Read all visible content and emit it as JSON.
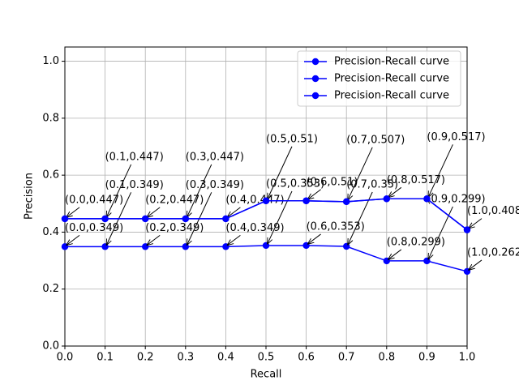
{
  "chart_data": {
    "type": "line",
    "x_label": "Recall",
    "y_label": "Precision",
    "x": [
      0.0,
      0.1,
      0.2,
      0.3,
      0.4,
      0.5,
      0.6,
      0.7,
      0.8,
      0.9,
      1.0
    ],
    "series": [
      {
        "name": "Precision-Recall curve",
        "color": "#0000ff",
        "values": [
          0.447,
          0.447,
          0.447,
          0.447,
          0.447,
          0.51,
          0.51,
          0.507,
          0.517,
          0.517,
          0.408
        ],
        "value_labels": [
          "(0.0,0.447)",
          "(0.1,0.447)",
          "(0.2,0.447)",
          "(0.3,0.447)",
          "(0.4,0.447)",
          "(0.5,0.51)",
          "(0.6,0.51)",
          "(0.7,0.507)",
          "(0.8,0.517)",
          "(0.9,0.517)",
          "(1.0,0.408)"
        ]
      },
      {
        "name": "Precision-Recall curve",
        "color": "#0000ff",
        "values": [
          0.349,
          0.349,
          0.349,
          0.349,
          0.349,
          0.353,
          0.353,
          0.35,
          0.299,
          0.299,
          0.262
        ],
        "value_labels": [
          "(0.0,0.349)",
          "(0.1,0.349)",
          "(0.2,0.349)",
          "(0.3,0.349)",
          "(0.4,0.349)",
          "(0.5,0.353)",
          "(0.6,0.353)",
          "(0.7,0.35)",
          "(0.8,0.299)",
          "(0.9,0.299)",
          "(1.0,0.262)"
        ]
      },
      {
        "name": "Precision-Recall curve",
        "color": "#0000ff",
        "values": [
          0.447,
          0.447,
          0.447,
          0.447,
          0.447,
          0.51,
          0.51,
          0.507,
          0.517,
          0.517,
          0.408
        ]
      }
    ],
    "xlim": [
      0,
      1
    ],
    "ylim": [
      0,
      1.05
    ],
    "xticks": [
      {
        "value": 0,
        "label": "0.0"
      },
      0.1,
      0.2,
      0.3,
      0.4,
      0.5,
      0.6,
      0.7,
      0.8,
      0.9,
      {
        "value": 1,
        "label": "1.0"
      }
    ],
    "yticks": [
      {
        "value": 0,
        "label": "0.0"
      },
      0.2,
      0.4,
      0.6,
      0.8,
      {
        "value": 1,
        "label": "1.0"
      }
    ],
    "grid": true,
    "legend": "upper right"
  }
}
